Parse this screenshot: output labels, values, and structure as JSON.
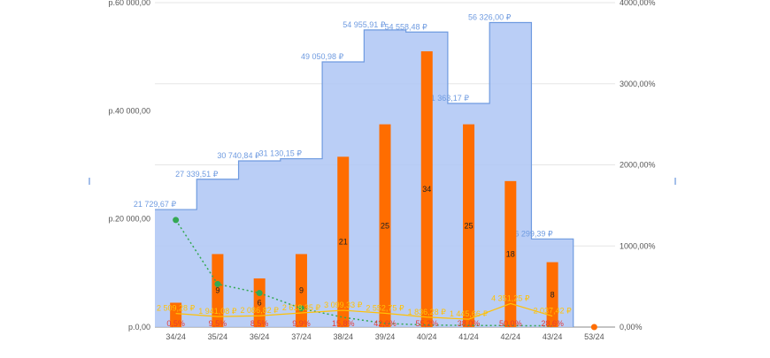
{
  "chart_data": {
    "type": "bar",
    "categories": [
      "34/24",
      "35/24",
      "36/24",
      "37/24",
      "38/24",
      "39/24",
      "40/24",
      "41/24",
      "42/24",
      "43/24",
      "53/24"
    ],
    "left_axis": {
      "ylim": [
        0,
        60000
      ],
      "ticks": [
        0,
        20000,
        40000,
        60000
      ],
      "tick_labels": [
        "p.0,00",
        "p.20 000,00",
        "p.40 000,00",
        "p.60 000,00"
      ]
    },
    "right_axis": {
      "ylim": [
        0,
        4000
      ],
      "ticks": [
        0,
        1000,
        2000,
        3000,
        4000
      ],
      "tick_labels": [
        "0,00%",
        "1000,00%",
        "2000,00%",
        "3000,00%",
        "4000,00%"
      ]
    },
    "count_axis_max": 40,
    "grid": true,
    "series": [
      {
        "type": "area",
        "axis": "left",
        "color": "#aec6f4",
        "line_color": "#6f9be0",
        "values": [
          21729.67,
          27339.51,
          30740.84,
          31130.15,
          49050.98,
          54955.91,
          54558.48,
          41363.17,
          56326.0,
          16299.39,
          null
        ],
        "labels": [
          "21 729,67 ₽",
          "27 339,51 ₽",
          "30 740,84 ₽",
          "31 130,15 ₽",
          "49 050,98 ₽",
          "54 955,91 ₽",
          "54 558,48 ₽",
          "41 363,17 ₽",
          "56 326,00 ₽",
          "16 299,39 ₽",
          ""
        ]
      },
      {
        "type": "bar",
        "axis": "count",
        "color": "#ff6d00",
        "values": [
          3,
          9,
          6,
          9,
          21,
          25,
          34,
          25,
          18,
          8,
          0
        ],
        "labels": [
          "",
          "9",
          "6",
          "9",
          "21",
          "25",
          "34",
          "25",
          "18",
          "8",
          ""
        ]
      },
      {
        "type": "line",
        "axis": "right",
        "color": "#34a853",
        "style": "dotted",
        "values": [
          1320,
          530,
          420,
          230,
          120,
          45,
          25,
          20,
          18,
          15,
          null
        ]
      },
      {
        "type": "line",
        "axis": "left",
        "color": "#ffc107",
        "values": [
          2509.28,
          1941.08,
          2086.82,
          2618.35,
          3099.33,
          2552.75,
          1836.28,
          1445.66,
          4351.25,
          2037.42,
          0
        ],
        "labels": [
          "2 509,28 ₽",
          "1 941,08 ₽",
          "2 086,82 ₽",
          "2 618,35 ₽",
          "3 099,33 ₽",
          "2 552,75 ₽",
          "1 836,28 ₽",
          "1 445,66 ₽",
          "4 351,25 ₽",
          "2 037,42 ₽",
          ""
        ]
      },
      {
        "type": "labels",
        "color": "#e53935",
        "labels": [
          "0,5%",
          "9,5%",
          "8,5%",
          "9,9%",
          "15,8%",
          "42,6%",
          "55,2%",
          "38,0%",
          "50,0%",
          "28,6%",
          ""
        ]
      }
    ]
  }
}
